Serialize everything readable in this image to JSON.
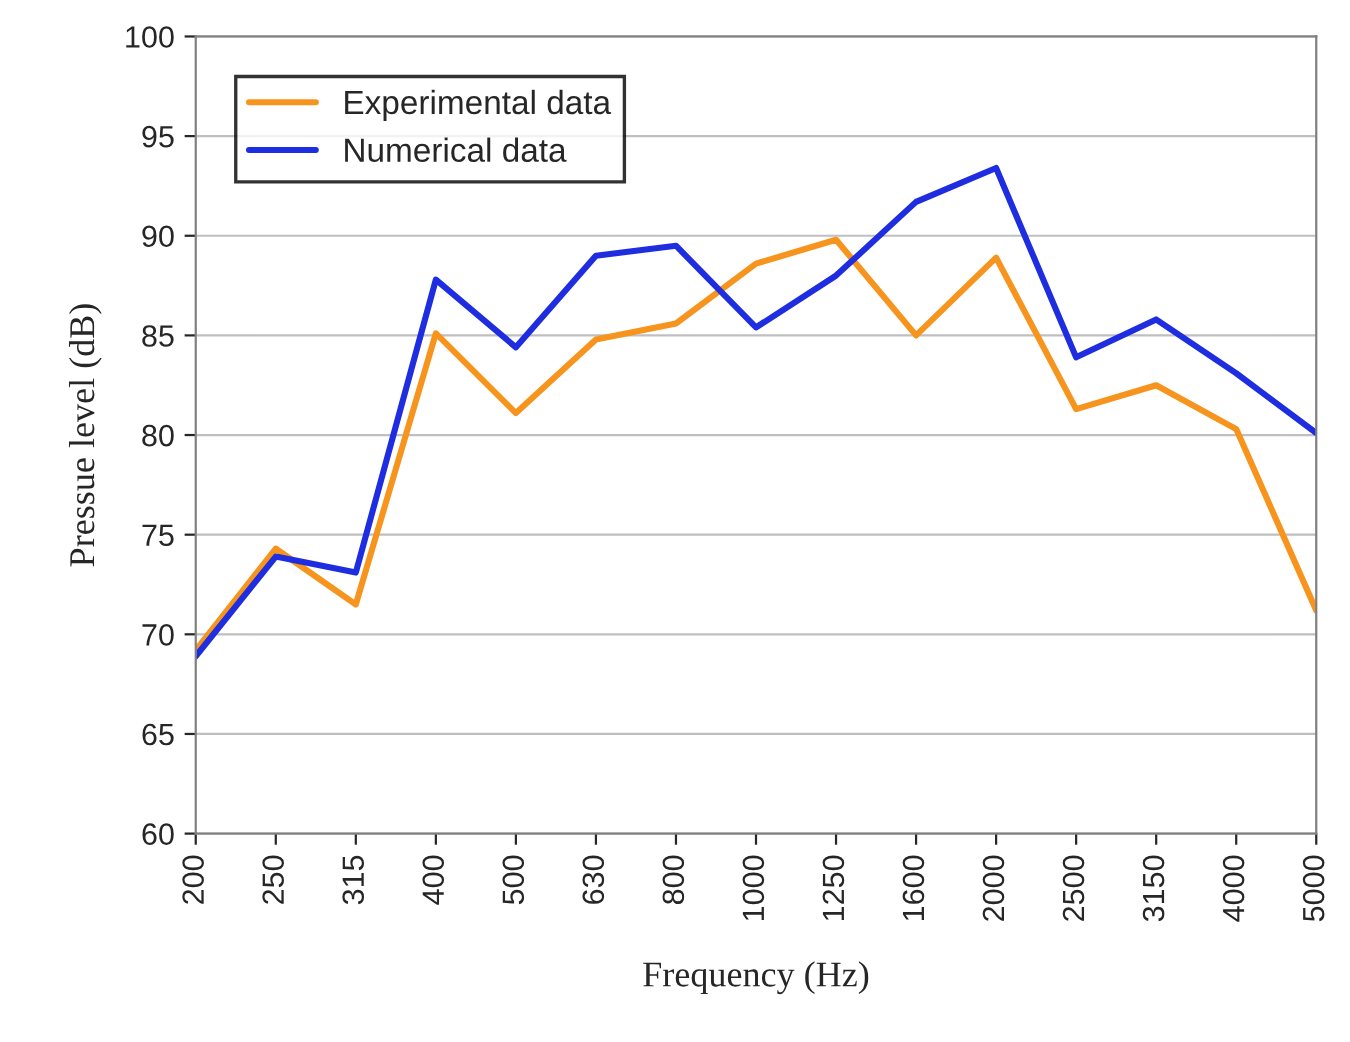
{
  "chart_data": {
    "type": "line",
    "xlabel": "Frequency (Hz)",
    "ylabel": "Pressue level (dB)",
    "categories": [
      "200",
      "250",
      "315",
      "400",
      "500",
      "630",
      "800",
      "1000",
      "1250",
      "1600",
      "2000",
      "2500",
      "3150",
      "4000",
      "5000"
    ],
    "series": [
      {
        "name": "Experimental data",
        "color": "#f7941d",
        "values": [
          69.2,
          74.3,
          71.5,
          85.1,
          81.1,
          84.8,
          85.6,
          88.6,
          89.8,
          85.0,
          88.9,
          81.3,
          82.5,
          80.3,
          71.2
        ]
      },
      {
        "name": "Numerical data",
        "color": "#1f2de0",
        "values": [
          68.9,
          73.9,
          73.1,
          87.8,
          84.4,
          89.0,
          89.5,
          85.4,
          88.0,
          91.7,
          93.4,
          83.9,
          85.8,
          83.1,
          80.1
        ]
      }
    ],
    "ylim": [
      60,
      100
    ],
    "yticks": [
      60,
      65,
      70,
      75,
      80,
      85,
      90,
      95,
      100
    ],
    "grid": "y",
    "legend": "top left",
    "marker": "none",
    "line_style": "solid"
  }
}
